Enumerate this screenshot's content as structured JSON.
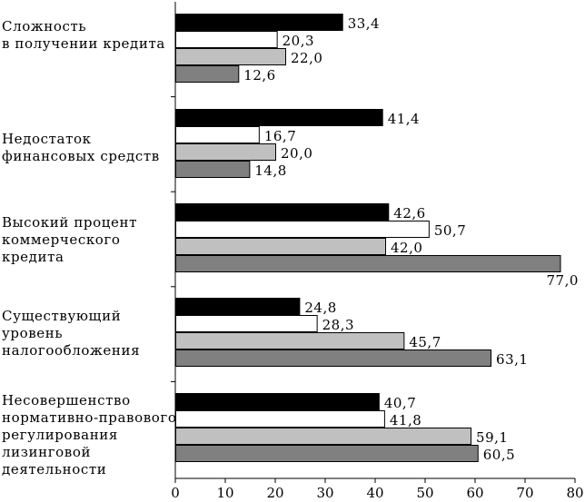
{
  "chart_data": {
    "type": "bar",
    "orientation": "horizontal",
    "title": "",
    "xlabel": "",
    "ylabel": "",
    "xlim": [
      0,
      80
    ],
    "x_ticks": [
      0,
      10,
      20,
      30,
      40,
      50,
      60,
      70,
      80
    ],
    "grid": false,
    "legend": "none",
    "categories": [
      "Сложность\nв получении кредита",
      "Недостаток\nфинансовых средств",
      "Высокий процент\nкоммерческого\nкредита",
      "Существующий\nуровень\nналогообложения",
      "Несовершенство\nнормативно-правового\nрегулирования\nлизинговой\nдеятельности"
    ],
    "series": [
      {
        "name": "series-1",
        "color": "#000000",
        "values": [
          33.4,
          41.4,
          42.6,
          24.8,
          40.7
        ]
      },
      {
        "name": "series-2",
        "color": "#ffffff",
        "values": [
          20.3,
          16.7,
          50.7,
          28.3,
          41.8
        ]
      },
      {
        "name": "series-3",
        "color": "#c0c0c0",
        "values": [
          22.0,
          20.0,
          42.0,
          45.7,
          59.1
        ]
      },
      {
        "name": "series-4",
        "color": "#808080",
        "values": [
          12.6,
          14.8,
          77.0,
          63.1,
          60.5
        ]
      }
    ],
    "value_labels": [
      [
        "33,4",
        "20,3",
        "22,0",
        "12,6"
      ],
      [
        "41,4",
        "16,7",
        "20,0",
        "14,8"
      ],
      [
        "42,6",
        "50,7",
        "42,0",
        "77,0"
      ],
      [
        "24,8",
        "28,3",
        "45,7",
        "63,1"
      ],
      [
        "40,7",
        "41,8",
        "59,1",
        "60,5"
      ]
    ]
  }
}
